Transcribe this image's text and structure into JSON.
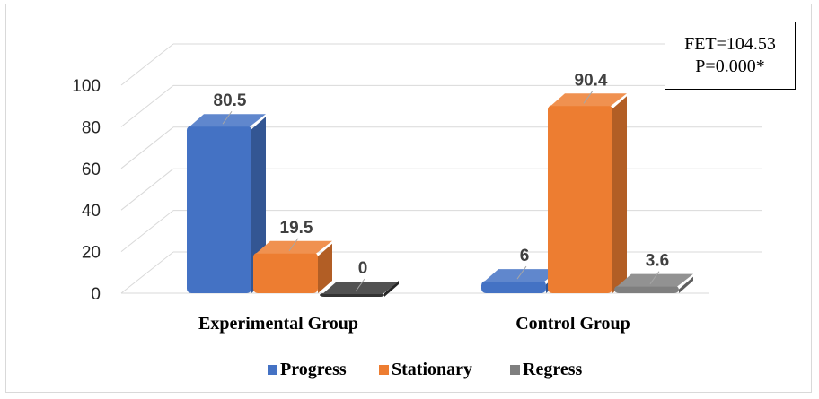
{
  "chart_data": {
    "type": "bar",
    "categories": [
      "Experimental Group",
      "Control Group"
    ],
    "series": [
      {
        "name": "Progress",
        "values": [
          80.5,
          6
        ],
        "color": "#4472c4"
      },
      {
        "name": "Stationary",
        "values": [
          19.5,
          90.4
        ],
        "color": "#ed7d31"
      },
      {
        "name": "Regress",
        "values": [
          0,
          3.6
        ],
        "color": "#7f7f7f"
      }
    ],
    "data_labels": [
      [
        "80.5",
        "19.5",
        "0"
      ],
      [
        "6",
        "90.4",
        "3.6"
      ]
    ],
    "y_ticks": [
      "0",
      "20",
      "40",
      "60",
      "80",
      "100"
    ],
    "ylim": [
      0,
      100
    ],
    "legend_position": "bottom",
    "grid": true,
    "style": "3d-cylinder"
  },
  "annotation": {
    "line1": "FET=104.53",
    "line2": "P=0.000*"
  }
}
